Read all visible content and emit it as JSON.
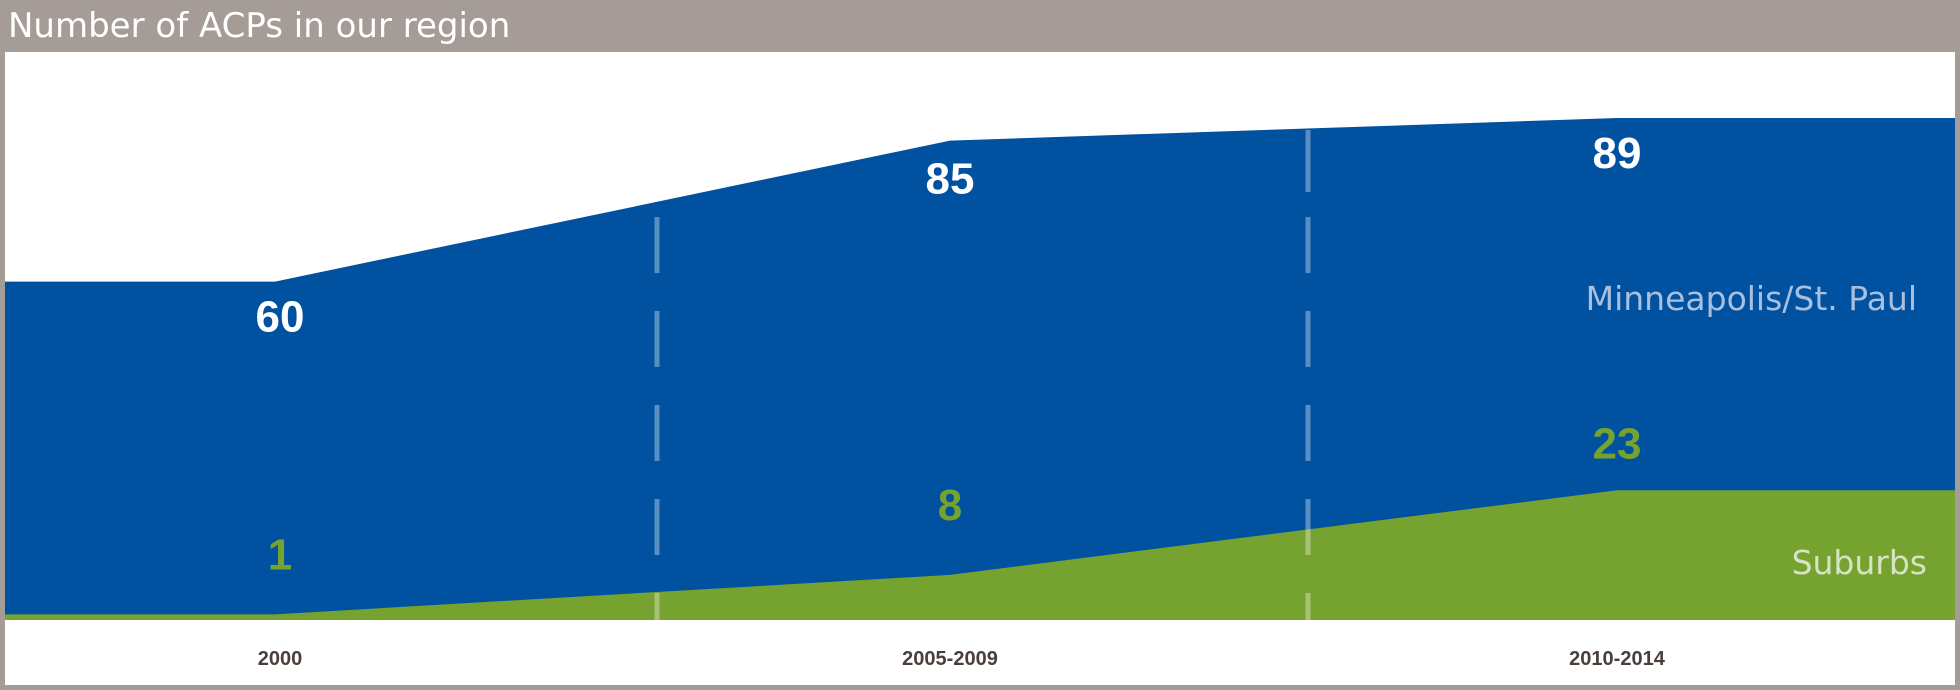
{
  "title": "Number of ACPs in our region",
  "colors": {
    "frame": "#a69c97",
    "background": "#ffffff",
    "city": "#0052a1",
    "suburbs": "#76a22f",
    "city_value_text": "#ffffff",
    "suburbs_value_text": "#76a22f",
    "city_label_text": "#a9bfdf",
    "suburbs_label_text": "#d6e3c4",
    "tick_text": "#4a3f3b",
    "divider": "#ffffff"
  },
  "chart_data": {
    "type": "area",
    "stacked": false,
    "categories": [
      "2000",
      "2005-2009",
      "2010-2014"
    ],
    "series": [
      {
        "name": "Minneapolis/St. Paul",
        "values": [
          60,
          85,
          89
        ],
        "value_labels": [
          "60",
          "85",
          "89"
        ]
      },
      {
        "name": "Suburbs",
        "values": [
          1,
          8,
          23
        ],
        "value_labels": [
          "1",
          "8",
          "23"
        ]
      }
    ],
    "ylim": [
      0,
      100
    ],
    "grid": false,
    "period_dividers": "dashed"
  }
}
